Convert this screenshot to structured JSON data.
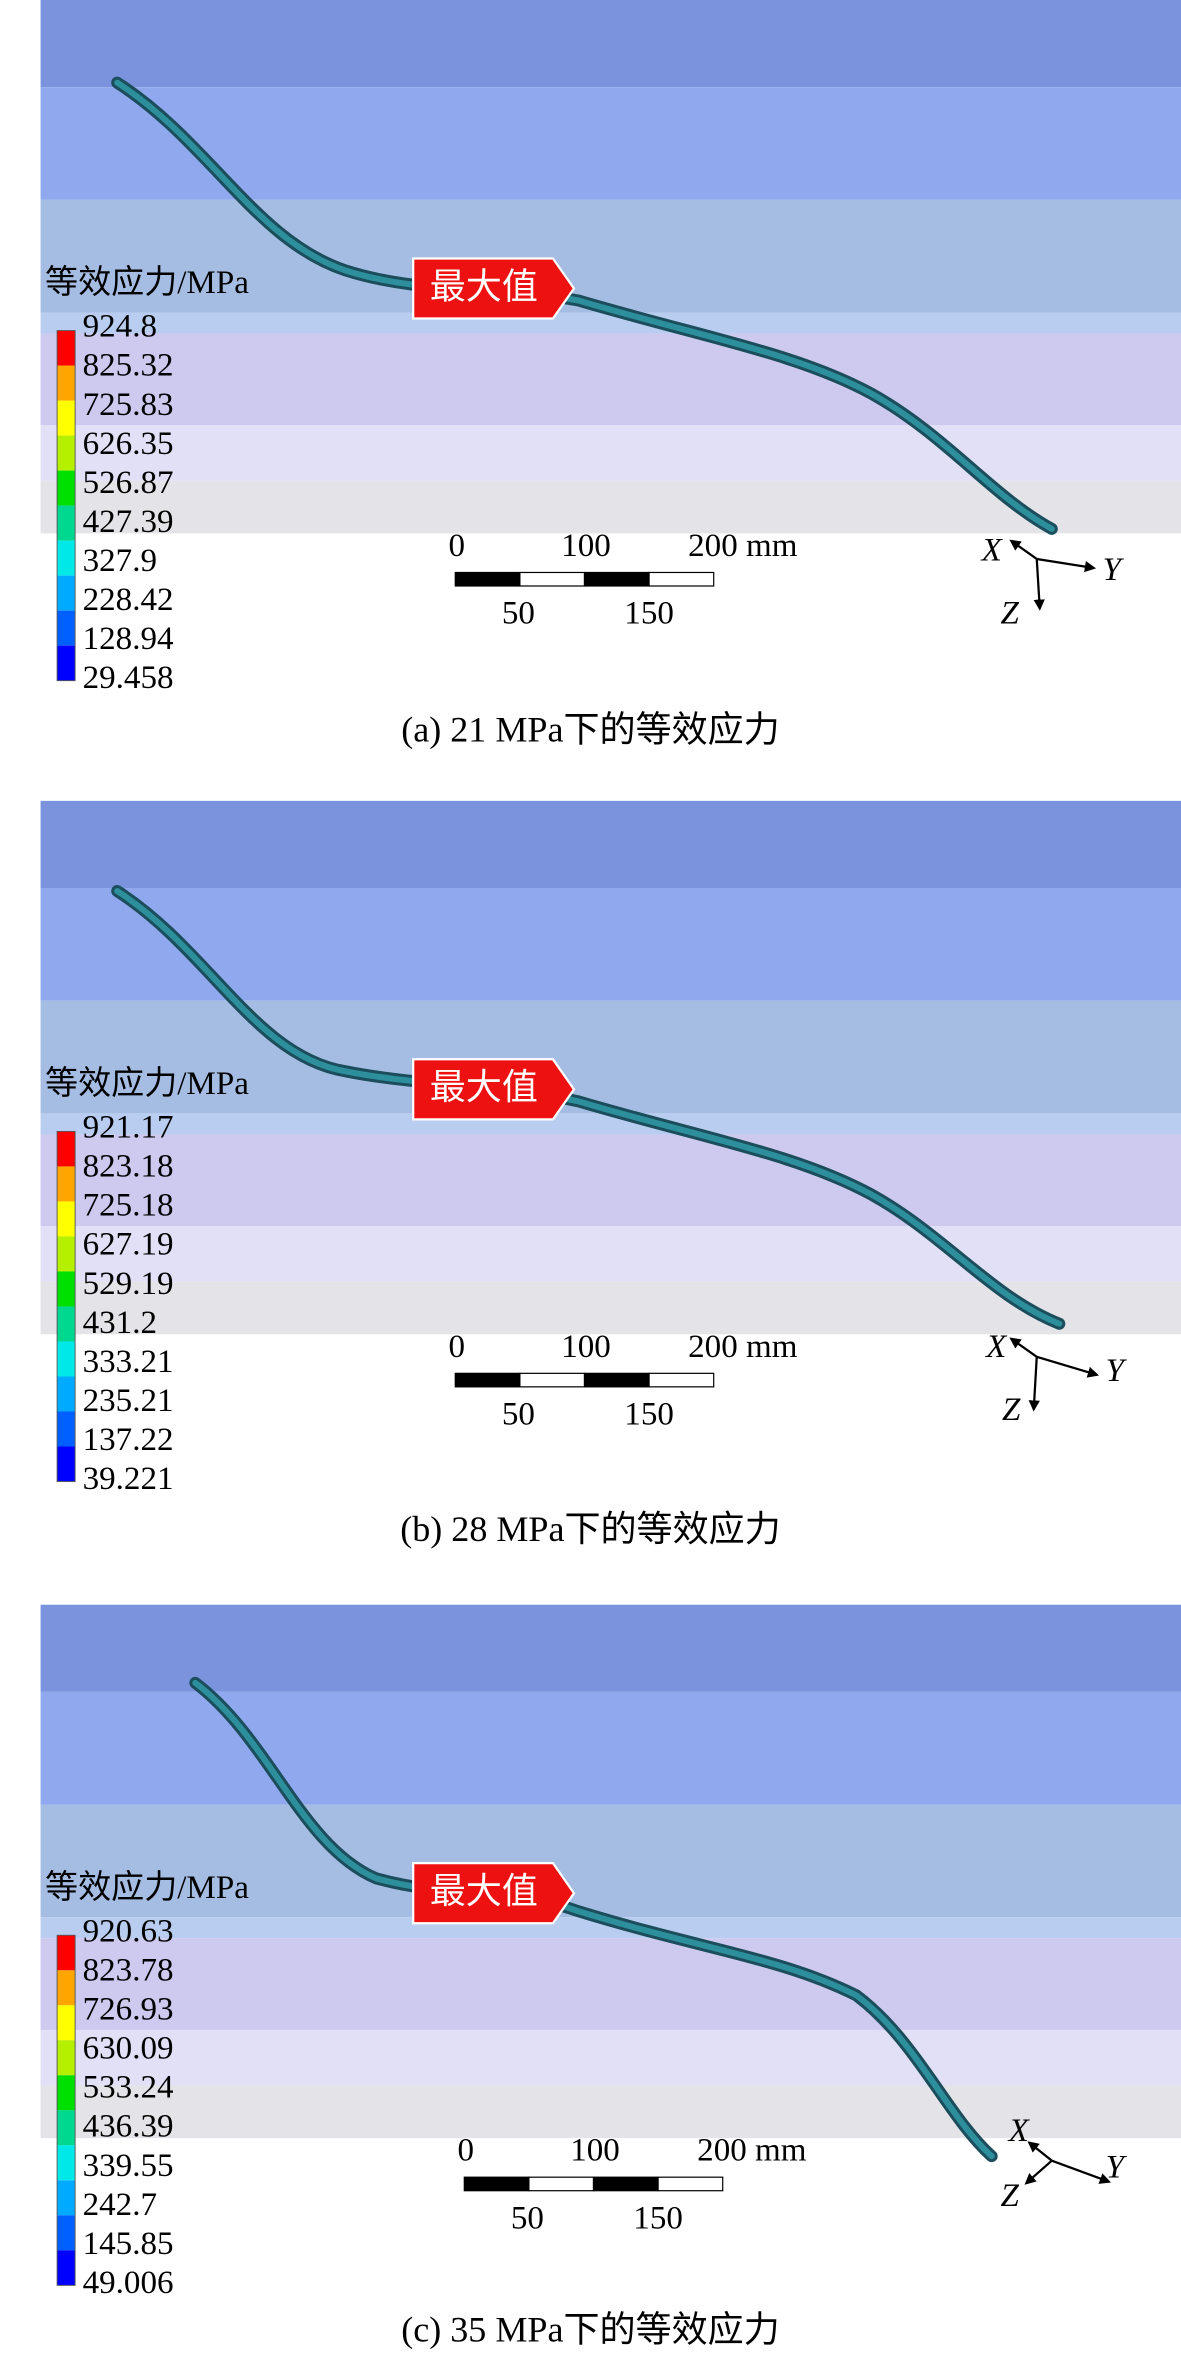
{
  "panels": [
    {
      "legend_title": "等效应力/MPa",
      "legend_values": [
        924.8,
        825.32,
        725.83,
        626.35,
        526.87,
        427.39,
        327.9,
        228.42,
        128.94,
        29.458
      ],
      "max_label": "最大值",
      "scale_top": [
        "0",
        "100",
        "200 mm"
      ],
      "scale_bottom": [
        "50",
        "150"
      ],
      "axes": [
        "X",
        "Y",
        "Z"
      ],
      "caption": "(a) 21 MPa下的等效应力"
    },
    {
      "legend_title": "等效应力/MPa",
      "legend_values": [
        921.17,
        823.18,
        725.18,
        627.19,
        529.19,
        431.2,
        333.21,
        235.21,
        137.22,
        39.221
      ],
      "max_label": "最大值",
      "scale_top": [
        "0",
        "100",
        "200 mm"
      ],
      "scale_bottom": [
        "50",
        "150"
      ],
      "axes": [
        "X",
        "Y",
        "Z"
      ],
      "caption": "(b) 28 MPa下的等效应力"
    },
    {
      "legend_title": "等效应力/MPa",
      "legend_values": [
        920.63,
        823.78,
        726.93,
        630.09,
        533.24,
        436.39,
        339.55,
        242.7,
        145.85,
        49.006
      ],
      "max_label": "最大值",
      "scale_top": [
        "0",
        "100",
        "200 mm"
      ],
      "scale_bottom": [
        "50",
        "150"
      ],
      "axes": [
        "X",
        "Y",
        "Z"
      ],
      "caption": "(c) 35 MPa下的等效应力"
    }
  ]
}
